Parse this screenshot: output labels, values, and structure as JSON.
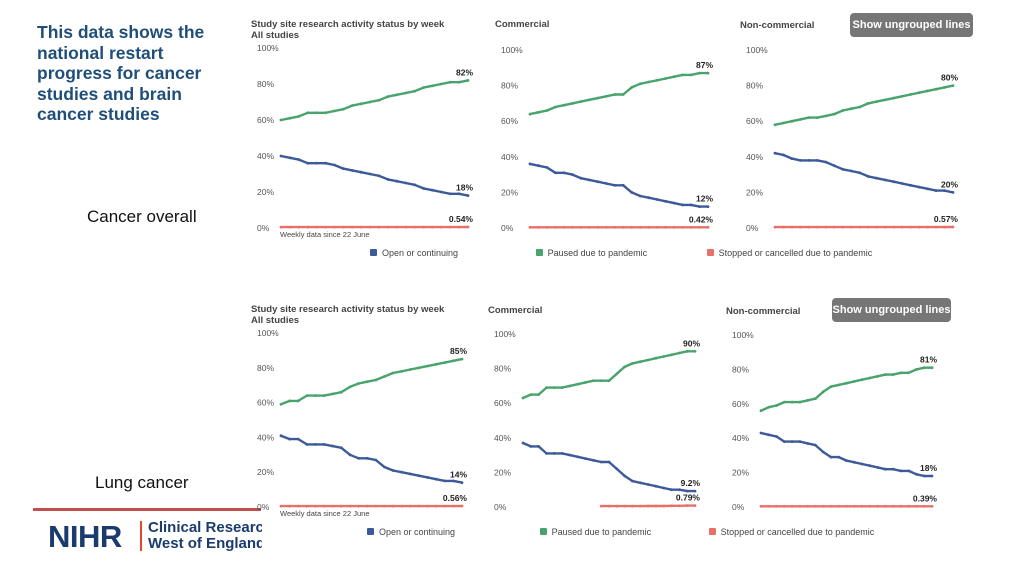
{
  "intro": {
    "text": "This data shows the national restart progress for cancer studies and brain cancer studies"
  },
  "sections": [
    {
      "label": "Cancer overall",
      "button": "Show ungrouped lines",
      "footnote": "Weekly data since 22 June",
      "legend": [
        "Open or continuing",
        "Paused due to pandemic",
        "Stopped or cancelled due to pandemic"
      ]
    },
    {
      "label": "Lung cancer",
      "button": "Show ungrouped lines",
      "footnote": "Weekly data since 22 June",
      "legend": [
        "Open or continuing",
        "Paused due to pandemic",
        "Stopped or cancelled due to pandemic"
      ]
    }
  ],
  "logo": {
    "brand": "NIHR",
    "line1": "Clinical Research Network",
    "line2": "West of England"
  },
  "colors": {
    "open": "#49a36c",
    "paused": "#3c5a99",
    "stopped": "#e8706b",
    "intro": "#1f4e79"
  },
  "chart_data": [
    {
      "type": "line",
      "section": "Cancer overall",
      "title": "Study site research activity status by week",
      "subtitle": "All studies",
      "ylim": [
        0,
        100
      ],
      "yticks": [
        "100%",
        "80%",
        "60%",
        "40%",
        "20%",
        "0%"
      ],
      "series": [
        {
          "name": "Open or continuing",
          "values": [
            60,
            61,
            62,
            64,
            64,
            64,
            65,
            66,
            68,
            69,
            70,
            71,
            73,
            74,
            75,
            76,
            78,
            79,
            80,
            81,
            81,
            82
          ],
          "end_label": "82%"
        },
        {
          "name": "Paused due to pandemic",
          "values": [
            40,
            39,
            38,
            36,
            36,
            36,
            35,
            33,
            32,
            31,
            30,
            29,
            27,
            26,
            25,
            24,
            22,
            21,
            20,
            19,
            19,
            18
          ],
          "end_label": "18%"
        },
        {
          "name": "Stopped or cancelled due to pandemic",
          "values": [
            0.5,
            0.5,
            0.5,
            0.5,
            0.5,
            0.5,
            0.5,
            0.5,
            0.5,
            0.5,
            0.5,
            0.5,
            0.5,
            0.5,
            0.5,
            0.5,
            0.5,
            0.5,
            0.5,
            0.5,
            0.5,
            0.54
          ],
          "end_label": "0.54%"
        }
      ]
    },
    {
      "type": "line",
      "section": "Cancer overall",
      "title": "Commercial",
      "subtitle": "",
      "ylim": [
        0,
        100
      ],
      "yticks": [
        "100%",
        "80%",
        "60%",
        "40%",
        "20%",
        "0%"
      ],
      "series": [
        {
          "name": "Open or continuing",
          "values": [
            64,
            65,
            66,
            68,
            69,
            70,
            71,
            72,
            73,
            74,
            75,
            75,
            79,
            81,
            82,
            83,
            84,
            85,
            86,
            86,
            87,
            87
          ],
          "end_label": "87%"
        },
        {
          "name": "Paused due to pandemic",
          "values": [
            36,
            35,
            34,
            31,
            31,
            30,
            28,
            27,
            26,
            25,
            24,
            24,
            20,
            18,
            17,
            16,
            15,
            14,
            13,
            13,
            12,
            12
          ],
          "end_label": "12%"
        },
        {
          "name": "Stopped or cancelled due to pandemic",
          "values": [
            0.4,
            0.4,
            0.4,
            0.4,
            0.4,
            0.4,
            0.4,
            0.4,
            0.4,
            0.4,
            0.4,
            0.4,
            0.4,
            0.4,
            0.4,
            0.4,
            0.4,
            0.4,
            0.4,
            0.4,
            0.4,
            0.42
          ],
          "end_label": "0.42%"
        }
      ]
    },
    {
      "type": "line",
      "section": "Cancer overall",
      "title": "Non-commercial",
      "subtitle": "",
      "ylim": [
        0,
        100
      ],
      "yticks": [
        "100%",
        "80%",
        "60%",
        "40%",
        "20%",
        "0%"
      ],
      "series": [
        {
          "name": "Open or continuing",
          "values": [
            58,
            59,
            60,
            61,
            62,
            62,
            63,
            64,
            66,
            67,
            68,
            70,
            71,
            72,
            73,
            74,
            75,
            76,
            77,
            78,
            79,
            80
          ],
          "end_label": "80%"
        },
        {
          "name": "Paused due to pandemic",
          "values": [
            42,
            41,
            39,
            38,
            38,
            38,
            37,
            35,
            33,
            32,
            31,
            29,
            28,
            27,
            26,
            25,
            24,
            23,
            22,
            21,
            21,
            20
          ],
          "end_label": "20%"
        },
        {
          "name": "Stopped or cancelled due to pandemic",
          "values": [
            0.5,
            0.5,
            0.5,
            0.5,
            0.5,
            0.5,
            0.5,
            0.5,
            0.5,
            0.5,
            0.5,
            0.5,
            0.5,
            0.5,
            0.5,
            0.5,
            0.5,
            0.5,
            0.5,
            0.5,
            0.5,
            0.57
          ],
          "end_label": "0.57%"
        }
      ]
    },
    {
      "type": "line",
      "section": "Lung cancer",
      "title": "Study site research activity status by week",
      "subtitle": "All studies",
      "ylim": [
        0,
        100
      ],
      "yticks": [
        "100%",
        "80%",
        "60%",
        "40%",
        "20%",
        "0%"
      ],
      "series": [
        {
          "name": "Open or continuing",
          "values": [
            59,
            61,
            61,
            64,
            64,
            64,
            65,
            66,
            69,
            71,
            72,
            73,
            75,
            77,
            78,
            79,
            80,
            81,
            82,
            83,
            84,
            85
          ],
          "end_label": "85%"
        },
        {
          "name": "Paused due to pandemic",
          "values": [
            41,
            39,
            39,
            36,
            36,
            36,
            35,
            34,
            30,
            28,
            28,
            27,
            23,
            21,
            20,
            19,
            18,
            17,
            16,
            15,
            15,
            14
          ],
          "end_label": "14%"
        },
        {
          "name": "Stopped or cancelled due to pandemic",
          "values": [
            0.5,
            0.5,
            0.5,
            0.5,
            0.5,
            0.5,
            0.5,
            0.5,
            0.5,
            0.5,
            0.5,
            0.5,
            0.5,
            0.5,
            0.5,
            0.5,
            0.5,
            0.5,
            0.5,
            0.5,
            0.5,
            0.56
          ],
          "end_label": "0.56%"
        }
      ]
    },
    {
      "type": "line",
      "section": "Lung cancer",
      "title": "Commercial",
      "subtitle": "",
      "ylim": [
        0,
        100
      ],
      "yticks": [
        "100%",
        "80%",
        "60%",
        "40%",
        "20%",
        "0%"
      ],
      "series": [
        {
          "name": "Open or continuing",
          "values": [
            63,
            65,
            65,
            69,
            69,
            69,
            70,
            71,
            72,
            73,
            73,
            73,
            77,
            81,
            83,
            84,
            85,
            86,
            87,
            88,
            89,
            90,
            90
          ],
          "end_label": "90%"
        },
        {
          "name": "Paused due to pandemic",
          "values": [
            37,
            35,
            35,
            31,
            31,
            31,
            30,
            29,
            28,
            27,
            26,
            26,
            22,
            18,
            15,
            14,
            13,
            12,
            11,
            10,
            10,
            9.2,
            9.2
          ],
          "end_label": "9.2%"
        },
        {
          "name": "Stopped or cancelled due to pandemic",
          "values": [
            null,
            null,
            null,
            null,
            null,
            null,
            null,
            null,
            null,
            null,
            0.5,
            0.5,
            0.5,
            0.5,
            0.5,
            0.5,
            0.6,
            0.6,
            0.6,
            0.7,
            0.7,
            0.79,
            0.79
          ],
          "end_label": "0.79%"
        }
      ]
    },
    {
      "type": "line",
      "section": "Lung cancer",
      "title": "Non-commercial",
      "subtitle": "",
      "ylim": [
        0,
        100
      ],
      "yticks": [
        "100%",
        "80%",
        "60%",
        "40%",
        "20%",
        "0%"
      ],
      "series": [
        {
          "name": "Open or continuing",
          "values": [
            56,
            58,
            59,
            61,
            61,
            61,
            62,
            63,
            67,
            70,
            71,
            72,
            73,
            74,
            75,
            76,
            77,
            77,
            78,
            78,
            80,
            81,
            81
          ],
          "end_label": "81%"
        },
        {
          "name": "Paused due to pandemic",
          "values": [
            43,
            42,
            41,
            38,
            38,
            38,
            37,
            36,
            32,
            29,
            29,
            27,
            26,
            25,
            24,
            23,
            22,
            22,
            21,
            21,
            19,
            18,
            18
          ],
          "end_label": "18%"
        },
        {
          "name": "Stopped or cancelled due to pandemic",
          "values": [
            0.4,
            0.4,
            0.4,
            0.4,
            0.4,
            0.4,
            0.4,
            0.4,
            0.4,
            0.4,
            0.4,
            0.4,
            0.4,
            0.4,
            0.4,
            0.4,
            0.4,
            0.4,
            0.4,
            0.4,
            0.4,
            0.39,
            0.39
          ],
          "end_label": "0.39%"
        }
      ]
    }
  ]
}
